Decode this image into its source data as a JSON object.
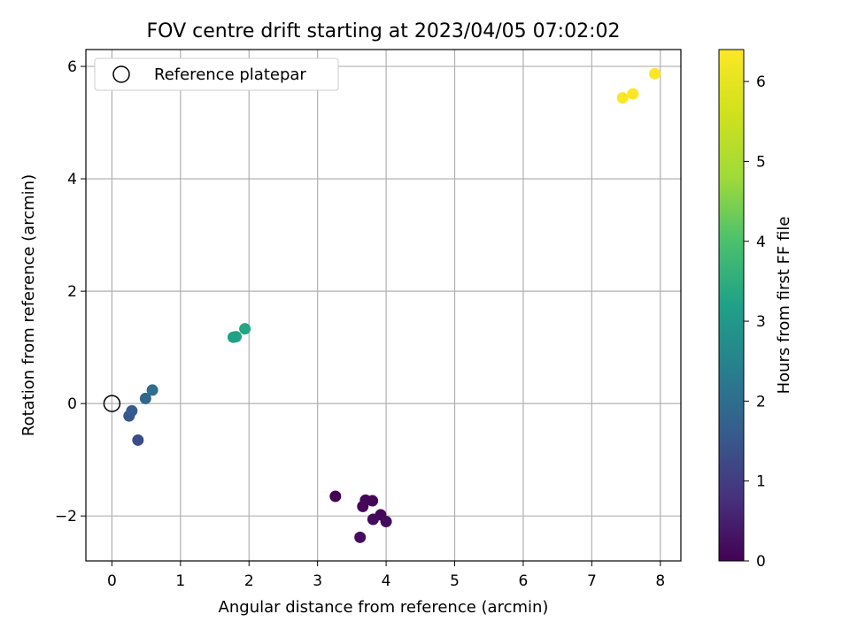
{
  "chart_data": {
    "type": "scatter",
    "title": "FOV centre drift starting at 2023/04/05 07:02:02",
    "xlabel": "Angular distance from reference (arcmin)",
    "ylabel": "Rotation from reference (arcmin)",
    "xlim": [
      -0.38,
      8.3
    ],
    "ylim": [
      -2.8,
      6.3
    ],
    "xticks": [
      "0",
      "1",
      "2",
      "3",
      "4",
      "5",
      "6",
      "7",
      "8"
    ],
    "yticks": [
      "−2",
      "0",
      "2",
      "4",
      "6"
    ],
    "grid": true,
    "legend": {
      "placement": "top-left",
      "entries": [
        "Reference platepar"
      ]
    },
    "reference_point": {
      "x": 0,
      "y": 0,
      "label": "Reference platepar"
    },
    "colorbar": {
      "label": "Hours from first FF file",
      "range": [
        0,
        6.4
      ],
      "ticks": [
        "0",
        "1",
        "2",
        "3",
        "4",
        "5",
        "6"
      ],
      "colormap": "viridis"
    },
    "points": [
      {
        "x": 3.26,
        "y": -1.65,
        "hours": 0.0
      },
      {
        "x": 3.7,
        "y": -1.72,
        "hours": 0.05
      },
      {
        "x": 3.8,
        "y": -1.73,
        "hours": 0.08
      },
      {
        "x": 3.66,
        "y": -1.83,
        "hours": 0.1
      },
      {
        "x": 3.92,
        "y": -1.98,
        "hours": 0.12
      },
      {
        "x": 3.81,
        "y": -2.06,
        "hours": 0.15
      },
      {
        "x": 4.0,
        "y": -2.1,
        "hours": 0.18
      },
      {
        "x": 3.62,
        "y": -2.38,
        "hours": 0.2
      },
      {
        "x": 0.38,
        "y": -0.65,
        "hours": 1.3
      },
      {
        "x": 0.25,
        "y": -0.22,
        "hours": 1.5
      },
      {
        "x": 0.29,
        "y": -0.13,
        "hours": 1.6
      },
      {
        "x": 0.49,
        "y": 0.09,
        "hours": 1.85
      },
      {
        "x": 0.59,
        "y": 0.24,
        "hours": 2.0
      },
      {
        "x": 1.77,
        "y": 1.18,
        "hours": 3.2
      },
      {
        "x": 1.81,
        "y": 1.19,
        "hours": 3.22
      },
      {
        "x": 1.94,
        "y": 1.33,
        "hours": 3.3
      },
      {
        "x": 7.45,
        "y": 5.44,
        "hours": 6.35
      },
      {
        "x": 7.6,
        "y": 5.51,
        "hours": 6.38
      },
      {
        "x": 7.92,
        "y": 5.87,
        "hours": 6.42
      }
    ]
  }
}
